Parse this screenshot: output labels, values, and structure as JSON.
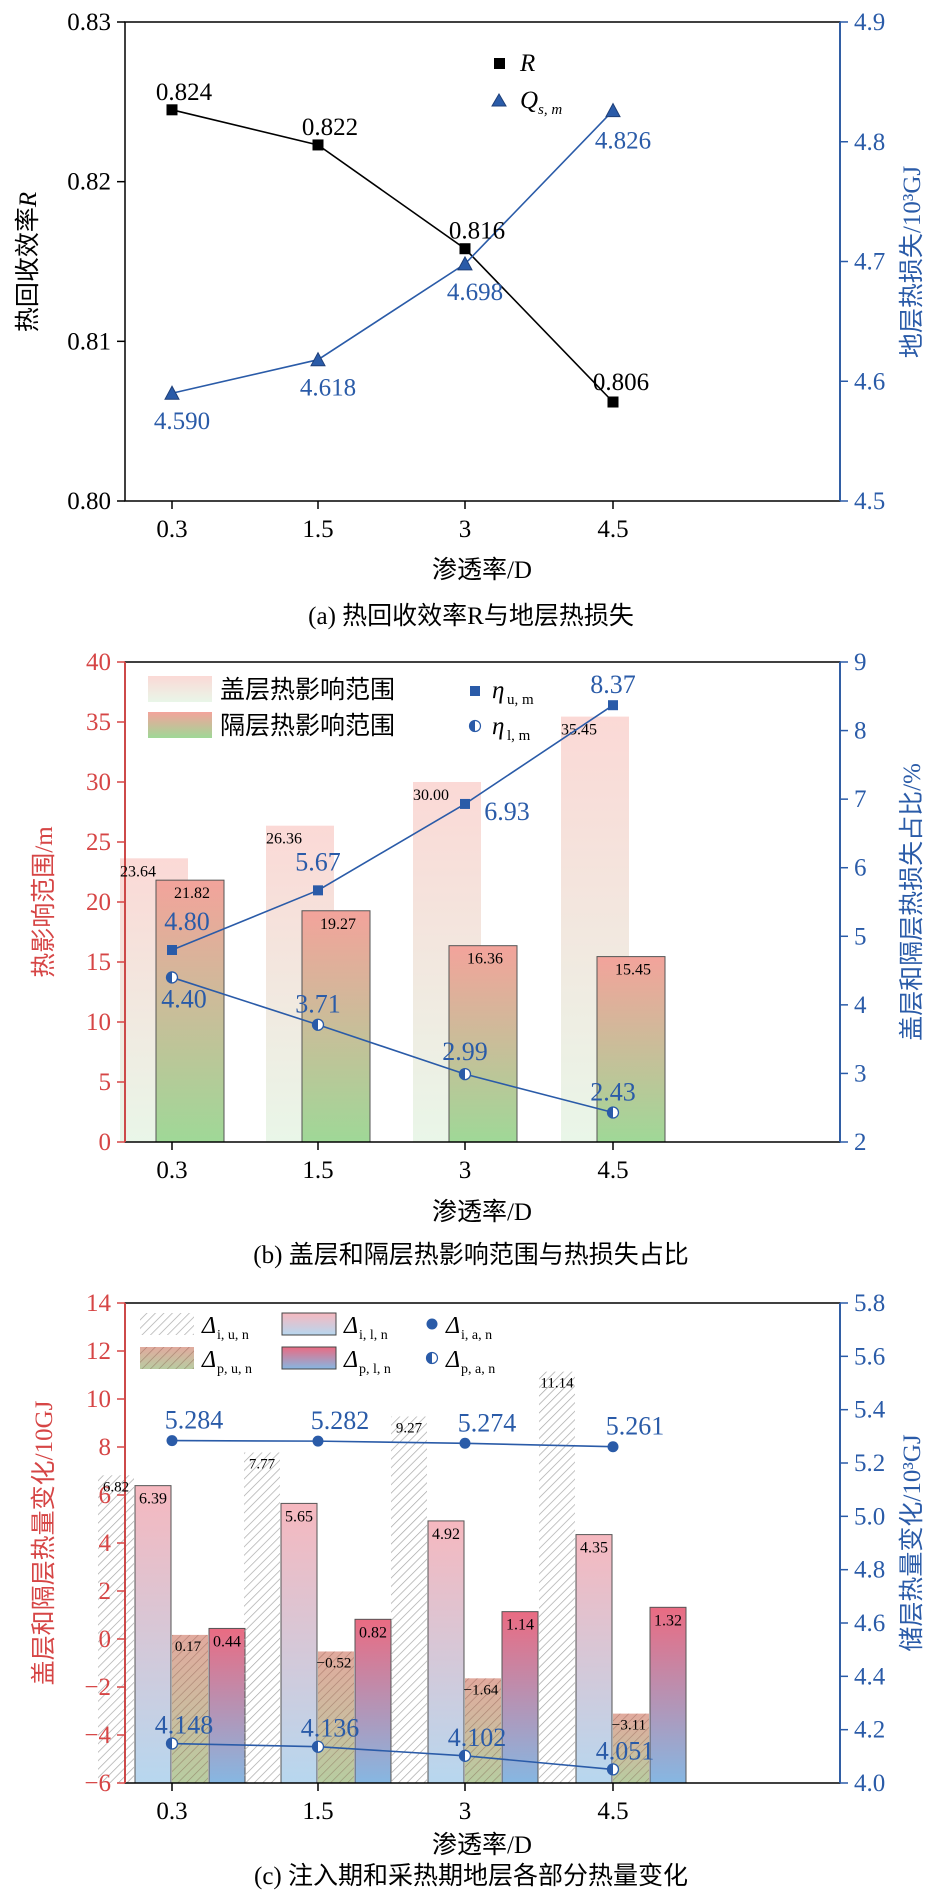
{
  "colors": {
    "black": "#000000",
    "blue": "#2a5ba8",
    "red": "#d64545",
    "cap_pink": "#f4b3b0",
    "iso_green": "#a8dca0",
    "grey_hatch": "#9a9a9a"
  },
  "chart_data": [
    {
      "type": "line",
      "title": "(a) 热回收效率R与地层热损失",
      "caption": "(a) 热回收效率R与地层热损失",
      "xlabel": "渗透率/D",
      "ylabel_left": "热回收效率",
      "ylabel_left_italic": "R",
      "ylabel_right": "地层热损失/10³GJ",
      "categories": [
        "0.3",
        "1.5",
        "3",
        "4.5"
      ],
      "ylim_left": [
        0.8,
        0.83
      ],
      "yticks_left": [
        "0.80",
        "0.81",
        "0.82",
        "0.83"
      ],
      "ylim_right": [
        4.5,
        4.9
      ],
      "yticks_right": [
        "4.5",
        "4.6",
        "4.7",
        "4.8",
        "4.9"
      ],
      "series": [
        {
          "name": "R",
          "axis": "left",
          "marker": "square",
          "color": "#000000",
          "values": [
            0.8245,
            0.8223,
            0.8158,
            0.8062
          ],
          "labels": [
            "0.824",
            "0.822",
            "0.816",
            "0.806"
          ]
        },
        {
          "name": "Q",
          "name_sub": "s, m",
          "axis": "right",
          "marker": "triangle",
          "color": "#2a5ba8",
          "values": [
            4.59,
            4.618,
            4.698,
            4.826
          ],
          "labels": [
            "4.590",
            "4.618",
            "4.698",
            "4.826"
          ]
        }
      ],
      "legend": [
        {
          "main": "R",
          "sub": ""
        },
        {
          "main": "Q",
          "sub": "s, m"
        }
      ]
    },
    {
      "type": "bar",
      "title": "(b) 盖层和隔层热影响范围与热损失占比",
      "caption": "(b) 盖层和隔层热影响范围与热损失占比",
      "xlabel": "渗透率/D",
      "ylabel_left": "热影响范围/m",
      "ylabel_right": "盖层和隔层热损失占比/%",
      "categories": [
        "0.3",
        "1.5",
        "3",
        "4.5"
      ],
      "ylim_left": [
        0,
        40
      ],
      "yticks_left": [
        "0",
        "5",
        "10",
        "15",
        "20",
        "25",
        "30",
        "35",
        "40"
      ],
      "ylim_right": [
        2,
        9
      ],
      "yticks_right": [
        "2",
        "3",
        "4",
        "5",
        "6",
        "7",
        "8",
        "9"
      ],
      "bar_series": [
        {
          "name": "盖层热影响范围",
          "values": [
            23.64,
            26.36,
            30.0,
            35.45
          ],
          "labels": [
            "23.64",
            "26.36",
            "30.00",
            "35.45"
          ]
        },
        {
          "name": "隔层热影响范围",
          "values": [
            21.82,
            19.27,
            16.36,
            15.45
          ],
          "labels": [
            "21.82",
            "19.27",
            "16.36",
            "15.45"
          ]
        }
      ],
      "line_series": [
        {
          "name": "η",
          "name_sub": "u, m",
          "marker": "square",
          "values": [
            4.8,
            5.67,
            6.93,
            8.37
          ],
          "labels": [
            "4.80",
            "5.67",
            "6.93",
            "8.37"
          ]
        },
        {
          "name": "η",
          "name_sub": "l, m",
          "marker": "half-circle",
          "values": [
            4.4,
            3.71,
            2.99,
            2.43
          ],
          "labels": [
            "4.40",
            "3.71",
            "2.99",
            "2.43"
          ]
        }
      ],
      "legend": [
        {
          "main": "盖层热影响范围",
          "sub": ""
        },
        {
          "main": "隔层热影响范围",
          "sub": ""
        },
        {
          "main": "η",
          "sub": "u, m"
        },
        {
          "main": "η",
          "sub": "l, m"
        }
      ]
    },
    {
      "type": "bar",
      "title": "(c) 注入期和采热期地层各部分热量变化",
      "caption": "(c) 注入期和采热期地层各部分热量变化",
      "xlabel": "渗透率/D",
      "ylabel_left": "盖层和隔层热量变化/10GJ",
      "ylabel_right": "储层热量变化/10³GJ",
      "categories": [
        "0.3",
        "1.5",
        "3",
        "4.5"
      ],
      "ylim_left": [
        -6,
        14
      ],
      "yticks_left": [
        "−6",
        "−4",
        "−2",
        "0",
        "2",
        "4",
        "6",
        "8",
        "10",
        "12",
        "14"
      ],
      "ylim_right": [
        4.0,
        5.8
      ],
      "yticks_right": [
        "4.0",
        "4.2",
        "4.4",
        "4.6",
        "4.8",
        "5.0",
        "5.2",
        "5.4",
        "5.6",
        "5.8"
      ],
      "bar_series": [
        {
          "name": "Δ",
          "name_sub": "i, u, n",
          "values": [
            6.82,
            7.77,
            9.27,
            11.14
          ],
          "labels": [
            "6.82",
            "7.77",
            "9.27",
            "11.14"
          ]
        },
        {
          "name": "Δ",
          "name_sub": "i, l, n",
          "values": [
            6.39,
            5.65,
            4.92,
            4.35
          ],
          "labels": [
            "6.39",
            "5.65",
            "4.92",
            "4.35"
          ]
        },
        {
          "name": "Δ",
          "name_sub": "p, u, n",
          "values": [
            0.17,
            -0.52,
            -1.64,
            -3.11
          ],
          "labels": [
            "0.17",
            "−0.52",
            "−1.64",
            "−3.11"
          ]
        },
        {
          "name": "Δ",
          "name_sub": "p, l, n",
          "values": [
            0.44,
            0.82,
            1.14,
            1.32
          ],
          "labels": [
            "0.44",
            "0.82",
            "1.14",
            "1.32"
          ]
        }
      ],
      "line_series": [
        {
          "name": "Δ",
          "name_sub": "i, a, n",
          "marker": "circle",
          "values": [
            5.284,
            5.282,
            5.274,
            5.261
          ],
          "labels": [
            "5.284",
            "5.282",
            "5.274",
            "5.261"
          ]
        },
        {
          "name": "Δ",
          "name_sub": "p, a, n",
          "marker": "half-circle",
          "values": [
            4.148,
            4.136,
            4.102,
            4.051
          ],
          "labels": [
            "4.148",
            "4.136",
            "4.102",
            "4.051"
          ]
        }
      ],
      "legend": [
        {
          "main": "Δ",
          "sub": "i, u, n"
        },
        {
          "main": "Δ",
          "sub": "i, l, n"
        },
        {
          "main": "Δ",
          "sub": "i, a, n"
        },
        {
          "main": "Δ",
          "sub": "p, u, n"
        },
        {
          "main": "Δ",
          "sub": "p, l, n"
        },
        {
          "main": "Δ",
          "sub": "p, a, n"
        }
      ]
    }
  ]
}
